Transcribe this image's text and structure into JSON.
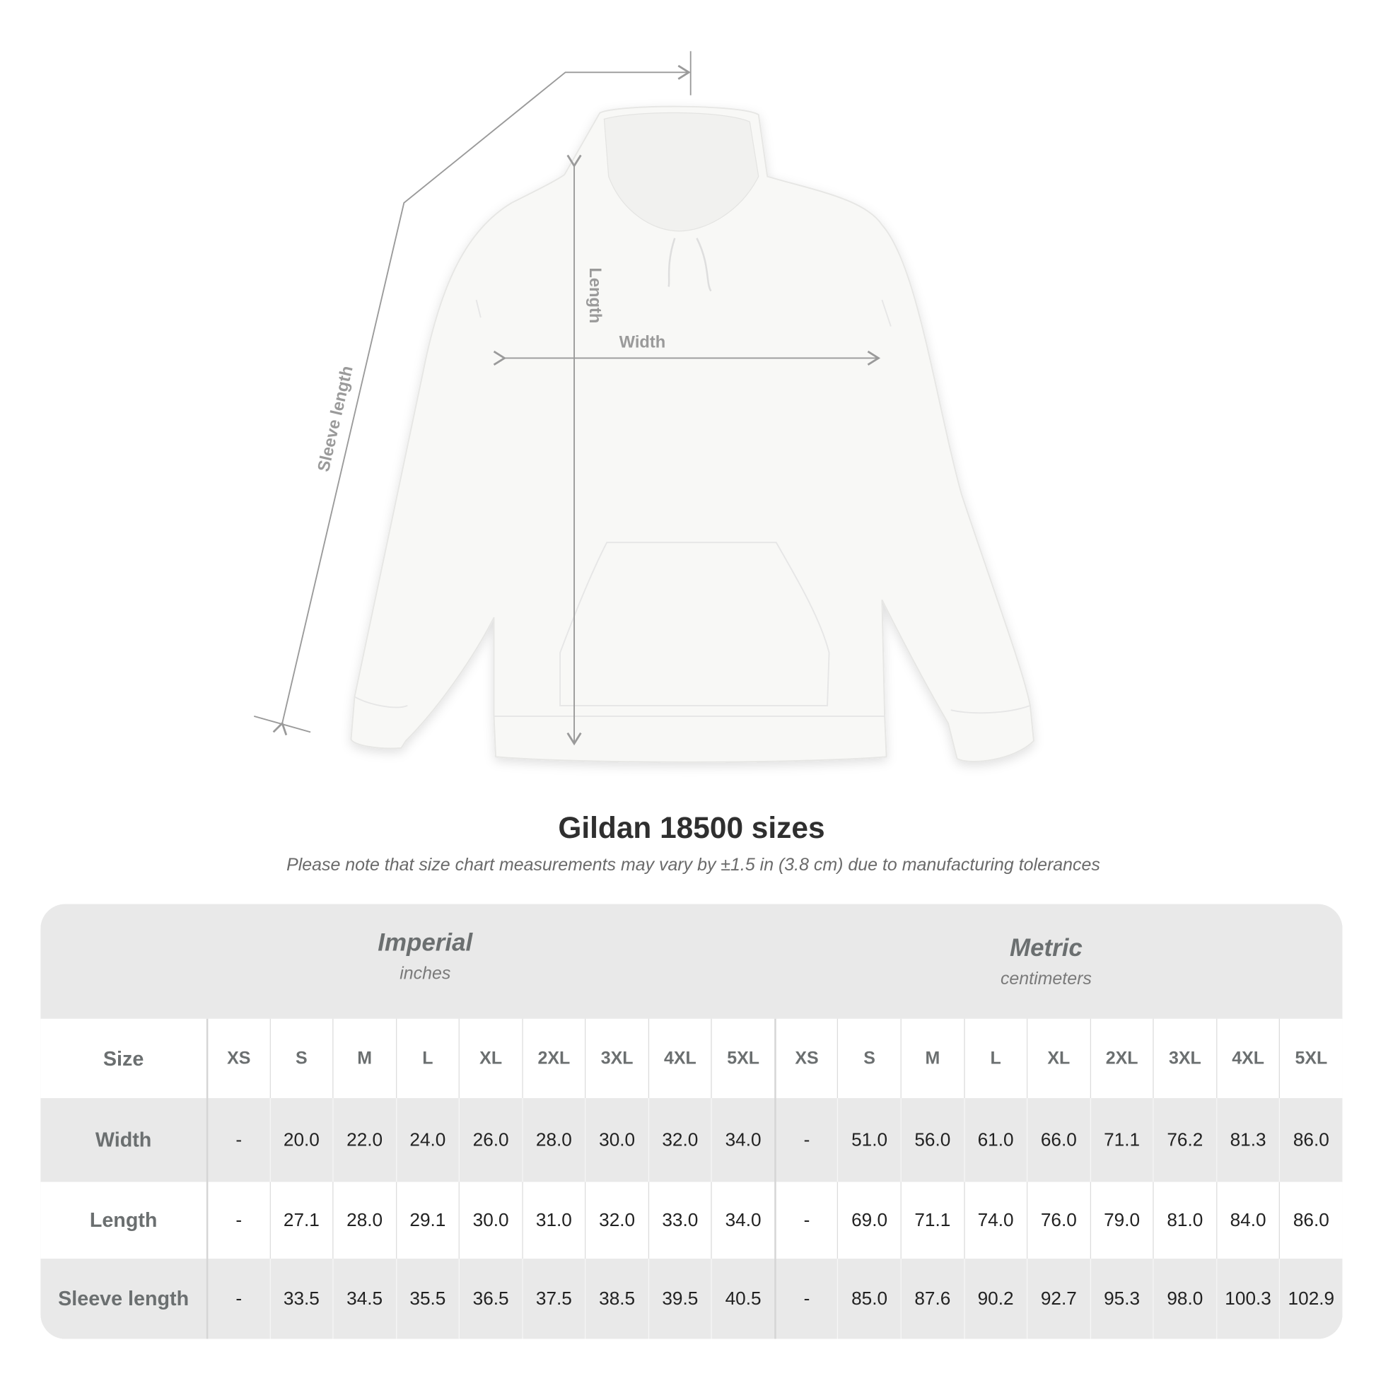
{
  "diagram": {
    "labels": {
      "width": "Width",
      "length": "Length",
      "sleeve_length": "Sleeve length"
    }
  },
  "title": "Gildan 18500 sizes",
  "note": "Please note that size chart measurements may vary by ±1.5 in (3.8 cm) due to manufacturing tolerances",
  "table": {
    "imperial": {
      "name": "Imperial",
      "unit": "inches"
    },
    "metric": {
      "name": "Metric",
      "unit": "centimeters"
    },
    "size_label": "Size",
    "sizes": [
      "XS",
      "S",
      "M",
      "L",
      "XL",
      "2XL",
      "3XL",
      "4XL",
      "5XL"
    ],
    "rows": [
      {
        "label": "Width",
        "imperial": [
          "-",
          "20.0",
          "22.0",
          "24.0",
          "26.0",
          "28.0",
          "30.0",
          "32.0",
          "34.0"
        ],
        "metric": [
          "-",
          "51.0",
          "56.0",
          "61.0",
          "66.0",
          "71.1",
          "76.2",
          "81.3",
          "86.0"
        ]
      },
      {
        "label": "Length",
        "imperial": [
          "-",
          "27.1",
          "28.0",
          "29.1",
          "30.0",
          "31.0",
          "32.0",
          "33.0",
          "34.0"
        ],
        "metric": [
          "-",
          "69.0",
          "71.1",
          "74.0",
          "76.0",
          "79.0",
          "81.0",
          "84.0",
          "86.0"
        ]
      },
      {
        "label": "Sleeve length",
        "imperial": [
          "-",
          "33.5",
          "34.5",
          "35.5",
          "36.5",
          "37.5",
          "38.5",
          "39.5",
          "40.5"
        ],
        "metric": [
          "-",
          "85.0",
          "87.6",
          "90.2",
          "92.7",
          "95.3",
          "98.0",
          "100.3",
          "102.9"
        ]
      }
    ]
  },
  "colors": {
    "header_gray": "#e9e9e9",
    "label_text": "#6b6f70",
    "measure_line": "#9a9a9a"
  }
}
